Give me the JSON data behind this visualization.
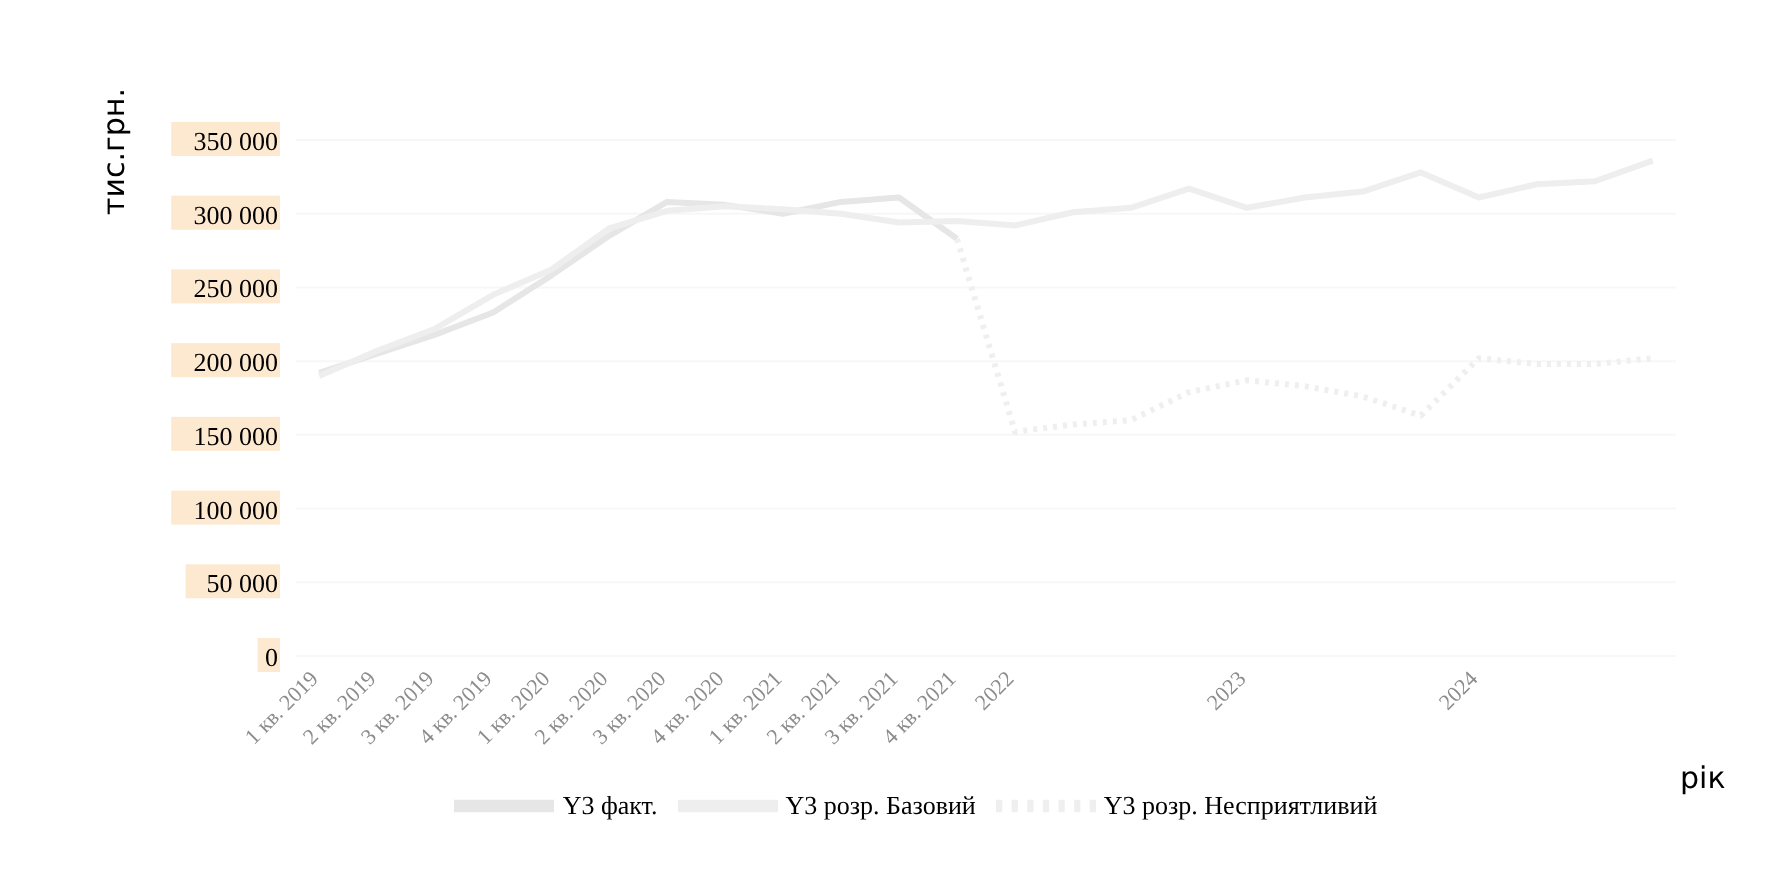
{
  "chart_data": {
    "type": "line",
    "xlabel": "рік",
    "ylabel": "тис.грн.",
    "categories": [
      "1 кв. 2019",
      "2 кв. 2019",
      "3 кв. 2019",
      "4 кв. 2019",
      "1 кв. 2020",
      "2 кв. 2020",
      "3 кв. 2020",
      "4 кв. 2020",
      "1 кв. 2021",
      "2 кв. 2021",
      "3 кв. 2021",
      "4 кв. 2021",
      "2022",
      null,
      null,
      null,
      "2023",
      null,
      null,
      null,
      "2024",
      null,
      null,
      null
    ],
    "series": [
      {
        "name": "Y3 факт.",
        "color": "#e6e6e6",
        "line_style": "solid",
        "values": [
          192000,
          205000,
          218000,
          233000,
          258000,
          285000,
          308000,
          306000,
          300000,
          308000,
          311000,
          283000,
          null,
          null,
          null,
          null,
          null,
          null,
          null,
          null,
          null,
          null,
          null,
          null
        ]
      },
      {
        "name": "Y3 розр. Базовий",
        "color": "#eeeeee",
        "line_style": "solid",
        "values": [
          190000,
          207000,
          222000,
          245000,
          262000,
          290000,
          302000,
          305000,
          303000,
          300000,
          294000,
          295000,
          292000,
          301000,
          304000,
          317000,
          304000,
          311000,
          315000,
          328000,
          311000,
          320000,
          322000,
          336000
        ]
      },
      {
        "name": "Y3 розр. Несприятливий",
        "color": "#efefef",
        "line_style": "dotted",
        "values": [
          null,
          null,
          null,
          null,
          null,
          null,
          null,
          null,
          null,
          null,
          null,
          283000,
          152000,
          157000,
          160000,
          179000,
          187000,
          183000,
          176000,
          163000,
          202000,
          198000,
          198000,
          202000
        ]
      }
    ],
    "ylim": [
      0,
      350000
    ],
    "yticks": [
      {
        "value": 0,
        "label": "0"
      },
      {
        "value": 50000,
        "label": "50 000"
      },
      {
        "value": 100000,
        "label": "100 000"
      },
      {
        "value": 150000,
        "label": "150 000"
      },
      {
        "value": 200000,
        "label": "200 000"
      },
      {
        "value": 250000,
        "label": "250 000"
      },
      {
        "value": 300000,
        "label": "300 000"
      },
      {
        "value": 350000,
        "label": "350 000"
      }
    ],
    "grid": "y",
    "legend": "bottom",
    "marker": "none"
  }
}
